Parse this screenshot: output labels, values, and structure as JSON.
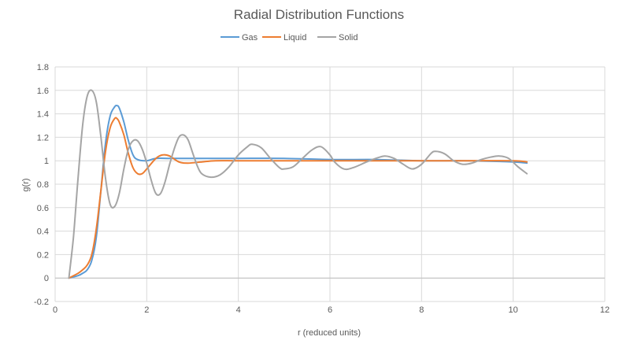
{
  "chart_data": {
    "type": "line",
    "title": "Radial Distribution Functions",
    "xlabel": "r (reduced units)",
    "ylabel": "g(r)",
    "xlim": [
      0,
      12
    ],
    "ylim": [
      -0.2,
      1.8
    ],
    "xticks": [
      0,
      2,
      4,
      6,
      8,
      10,
      12
    ],
    "yticks": [
      -0.2,
      0,
      0.2,
      0.4,
      0.6,
      0.8,
      1,
      1.2,
      1.4,
      1.6,
      1.8
    ],
    "xtick_labels": [
      "0",
      "2",
      "4",
      "6",
      "8",
      "10",
      "12"
    ],
    "ytick_labels": [
      "-0.2",
      "0",
      "0.2",
      "0.4",
      "0.6",
      "0.8",
      "1",
      "1.2",
      "1.4",
      "1.6",
      "1.8"
    ],
    "grid": "vertical and horizontal major gridlines",
    "legend_position": "top",
    "series": [
      {
        "name": "Gas",
        "color": "#5b9bd5",
        "points": [
          [
            0.3,
            0
          ],
          [
            0.5,
            0.02
          ],
          [
            0.6,
            0.04
          ],
          [
            0.7,
            0.07
          ],
          [
            0.8,
            0.15
          ],
          [
            0.9,
            0.35
          ],
          [
            1.0,
            0.75
          ],
          [
            1.1,
            1.15
          ],
          [
            1.2,
            1.38
          ],
          [
            1.3,
            1.46
          ],
          [
            1.35,
            1.47
          ],
          [
            1.4,
            1.45
          ],
          [
            1.5,
            1.33
          ],
          [
            1.6,
            1.17
          ],
          [
            1.7,
            1.05
          ],
          [
            1.8,
            1.01
          ],
          [
            2.0,
            1.0
          ],
          [
            2.2,
            1.02
          ],
          [
            2.5,
            1.02
          ],
          [
            3.0,
            1.02
          ],
          [
            3.5,
            1.02
          ],
          [
            4.0,
            1.02
          ],
          [
            5.0,
            1.02
          ],
          [
            6.0,
            1.01
          ],
          [
            7.0,
            1.01
          ],
          [
            8.0,
            1.0
          ],
          [
            9.0,
            1.0
          ],
          [
            10.0,
            0.99
          ],
          [
            10.3,
            0.98
          ]
        ]
      },
      {
        "name": "Liquid",
        "color": "#ed7d31",
        "points": [
          [
            0.3,
            0
          ],
          [
            0.5,
            0.04
          ],
          [
            0.6,
            0.07
          ],
          [
            0.7,
            0.11
          ],
          [
            0.8,
            0.2
          ],
          [
            0.9,
            0.42
          ],
          [
            1.0,
            0.75
          ],
          [
            1.1,
            1.08
          ],
          [
            1.2,
            1.28
          ],
          [
            1.3,
            1.36
          ],
          [
            1.35,
            1.36
          ],
          [
            1.4,
            1.33
          ],
          [
            1.5,
            1.22
          ],
          [
            1.6,
            1.06
          ],
          [
            1.7,
            0.94
          ],
          [
            1.8,
            0.89
          ],
          [
            1.9,
            0.89
          ],
          [
            2.0,
            0.93
          ],
          [
            2.2,
            1.02
          ],
          [
            2.35,
            1.05
          ],
          [
            2.5,
            1.04
          ],
          [
            2.7,
            0.99
          ],
          [
            2.9,
            0.98
          ],
          [
            3.2,
            0.99
          ],
          [
            3.5,
            1.0
          ],
          [
            4.0,
            1.0
          ],
          [
            5.0,
            1.0
          ],
          [
            6.0,
            1.0
          ],
          [
            7.0,
            1.0
          ],
          [
            8.0,
            1.0
          ],
          [
            9.0,
            1.0
          ],
          [
            10.0,
            1.0
          ],
          [
            10.3,
            0.99
          ]
        ]
      },
      {
        "name": "Solid",
        "color": "#a5a5a5",
        "points": [
          [
            0.3,
            0
          ],
          [
            0.4,
            0.35
          ],
          [
            0.5,
            0.85
          ],
          [
            0.6,
            1.3
          ],
          [
            0.7,
            1.55
          ],
          [
            0.8,
            1.6
          ],
          [
            0.9,
            1.5
          ],
          [
            1.0,
            1.2
          ],
          [
            1.1,
            0.85
          ],
          [
            1.2,
            0.63
          ],
          [
            1.3,
            0.61
          ],
          [
            1.4,
            0.72
          ],
          [
            1.5,
            0.93
          ],
          [
            1.6,
            1.1
          ],
          [
            1.7,
            1.17
          ],
          [
            1.8,
            1.17
          ],
          [
            1.9,
            1.1
          ],
          [
            2.0,
            0.98
          ],
          [
            2.1,
            0.83
          ],
          [
            2.2,
            0.72
          ],
          [
            2.3,
            0.72
          ],
          [
            2.4,
            0.82
          ],
          [
            2.5,
            0.97
          ],
          [
            2.6,
            1.1
          ],
          [
            2.7,
            1.2
          ],
          [
            2.8,
            1.22
          ],
          [
            2.9,
            1.18
          ],
          [
            3.0,
            1.07
          ],
          [
            3.1,
            0.96
          ],
          [
            3.2,
            0.89
          ],
          [
            3.4,
            0.86
          ],
          [
            3.6,
            0.88
          ],
          [
            3.8,
            0.95
          ],
          [
            4.0,
            1.05
          ],
          [
            4.2,
            1.12
          ],
          [
            4.3,
            1.14
          ],
          [
            4.5,
            1.11
          ],
          [
            4.7,
            1.02
          ],
          [
            4.9,
            0.94
          ],
          [
            5.0,
            0.93
          ],
          [
            5.2,
            0.95
          ],
          [
            5.4,
            1.02
          ],
          [
            5.6,
            1.09
          ],
          [
            5.8,
            1.12
          ],
          [
            6.0,
            1.05
          ],
          [
            6.1,
            0.99
          ],
          [
            6.3,
            0.93
          ],
          [
            6.5,
            0.94
          ],
          [
            6.8,
            0.99
          ],
          [
            7.0,
            1.02
          ],
          [
            7.2,
            1.04
          ],
          [
            7.4,
            1.02
          ],
          [
            7.6,
            0.97
          ],
          [
            7.8,
            0.93
          ],
          [
            8.0,
            0.97
          ],
          [
            8.2,
            1.06
          ],
          [
            8.3,
            1.08
          ],
          [
            8.5,
            1.06
          ],
          [
            8.7,
            1.0
          ],
          [
            8.9,
            0.97
          ],
          [
            9.1,
            0.98
          ],
          [
            9.3,
            1.01
          ],
          [
            9.5,
            1.03
          ],
          [
            9.7,
            1.04
          ],
          [
            9.9,
            1.02
          ],
          [
            10.1,
            0.95
          ],
          [
            10.3,
            0.89
          ]
        ]
      }
    ]
  }
}
